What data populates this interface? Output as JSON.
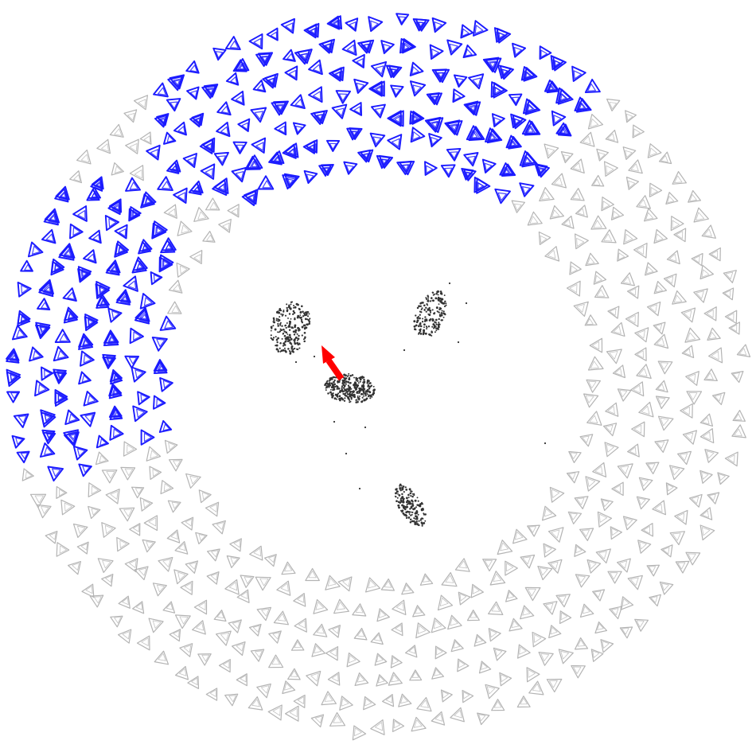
{
  "scene": {
    "background": "#ffffff",
    "colors": {
      "selected_cameras": "#1a1aff",
      "other_cameras": "#b4b4b4",
      "points": "#333333",
      "direction_arrow": "#ff0000"
    }
  }
}
